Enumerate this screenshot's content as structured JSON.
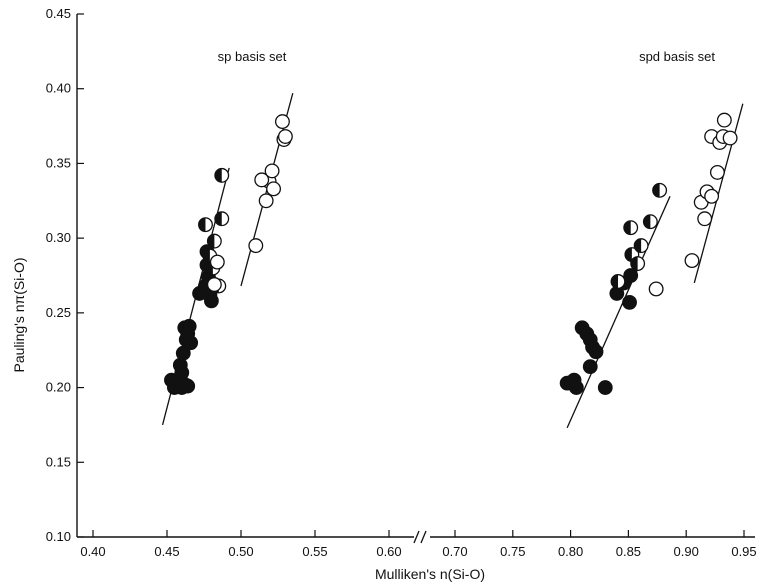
{
  "chart_data": {
    "type": "scatter",
    "title": "",
    "xlabel": "Mulliken's n(Si-O)",
    "ylabel": "Pauling's nπ(Si-O)",
    "ylim": [
      0.1,
      0.45
    ],
    "y_ticks": [
      "0.10",
      "0.15",
      "0.20",
      "0.25",
      "0.30",
      "0.35",
      "0.40",
      "0.45"
    ],
    "x_break": true,
    "x_segments": [
      {
        "xlim": [
          0.4,
          0.6
        ],
        "ticks": [
          "0.40",
          "0.45",
          "0.50",
          "0.55",
          "0.60"
        ]
      },
      {
        "xlim": [
          0.7,
          0.95
        ],
        "ticks": [
          "0.70",
          "0.75",
          "0.80",
          "0.85",
          "0.90",
          "0.95"
        ]
      }
    ],
    "grid": false,
    "panels": [
      {
        "label": "sp basis set",
        "fit_lines": [
          {
            "x": [
              0.447,
              0.492
            ],
            "y": [
              0.175,
              0.347
            ]
          },
          {
            "x": [
              0.5,
              0.535
            ],
            "y": [
              0.268,
              0.397
            ]
          }
        ],
        "series": [
          {
            "marker": "filled",
            "points": [
              [
                0.453,
                0.205
              ],
              [
                0.455,
                0.2
              ],
              [
                0.458,
                0.203
              ],
              [
                0.46,
                0.2
              ],
              [
                0.462,
                0.202
              ],
              [
                0.464,
                0.201
              ],
              [
                0.459,
                0.215
              ],
              [
                0.461,
                0.223
              ],
              [
                0.463,
                0.232
              ],
              [
                0.462,
                0.24
              ],
              [
                0.465,
                0.241
              ],
              [
                0.464,
                0.236
              ],
              [
                0.466,
                0.23
              ],
              [
                0.46,
                0.21
              ],
              [
                0.472,
                0.263
              ],
              [
                0.476,
                0.268
              ],
              [
                0.478,
                0.274
              ],
              [
                0.479,
                0.262
              ],
              [
                0.48,
                0.258
              ],
              [
                0.477,
                0.282
              ],
              [
                0.477,
                0.291
              ]
            ]
          },
          {
            "marker": "half",
            "points": [
              [
                0.476,
                0.309
              ],
              [
                0.482,
                0.298
              ],
              [
                0.479,
                0.288
              ],
              [
                0.481,
                0.28
              ],
              [
                0.487,
                0.313
              ],
              [
                0.487,
                0.342
              ],
              [
                0.485,
                0.268
              ]
            ]
          },
          {
            "marker": "open",
            "points": [
              [
                0.51,
                0.295
              ],
              [
                0.517,
                0.325
              ],
              [
                0.519,
                0.338
              ],
              [
                0.521,
                0.345
              ],
              [
                0.522,
                0.333
              ],
              [
                0.514,
                0.339
              ],
              [
                0.528,
                0.378
              ],
              [
                0.529,
                0.366
              ],
              [
                0.53,
                0.368
              ],
              [
                0.484,
                0.284
              ],
              [
                0.482,
                0.269
              ]
            ]
          }
        ]
      },
      {
        "label": "spd basis set",
        "fit_lines": [
          {
            "x": [
              0.797,
              0.886
            ],
            "y": [
              0.173,
              0.328
            ]
          },
          {
            "x": [
              0.907,
              0.949
            ],
            "y": [
              0.27,
              0.39
            ]
          }
        ],
        "series": [
          {
            "marker": "filled",
            "points": [
              [
                0.797,
                0.203
              ],
              [
                0.803,
                0.205
              ],
              [
                0.805,
                0.2
              ],
              [
                0.81,
                0.24
              ],
              [
                0.814,
                0.236
              ],
              [
                0.817,
                0.232
              ],
              [
                0.819,
                0.227
              ],
              [
                0.822,
                0.224
              ],
              [
                0.817,
                0.214
              ],
              [
                0.83,
                0.2
              ],
              [
                0.84,
                0.263
              ],
              [
                0.846,
                0.27
              ],
              [
                0.851,
                0.257
              ],
              [
                0.852,
                0.275
              ]
            ]
          },
          {
            "marker": "half",
            "points": [
              [
                0.841,
                0.271
              ],
              [
                0.852,
                0.307
              ],
              [
                0.853,
                0.289
              ],
              [
                0.858,
                0.283
              ],
              [
                0.861,
                0.295
              ],
              [
                0.869,
                0.311
              ],
              [
                0.877,
                0.332
              ]
            ]
          },
          {
            "marker": "open",
            "points": [
              [
                0.874,
                0.266
              ],
              [
                0.905,
                0.285
              ],
              [
                0.913,
                0.324
              ],
              [
                0.916,
                0.313
              ],
              [
                0.918,
                0.331
              ],
              [
                0.922,
                0.328
              ],
              [
                0.922,
                0.368
              ],
              [
                0.927,
                0.344
              ],
              [
                0.929,
                0.364
              ],
              [
                0.932,
                0.368
              ],
              [
                0.933,
                0.379
              ],
              [
                0.938,
                0.367
              ]
            ]
          }
        ]
      }
    ]
  }
}
